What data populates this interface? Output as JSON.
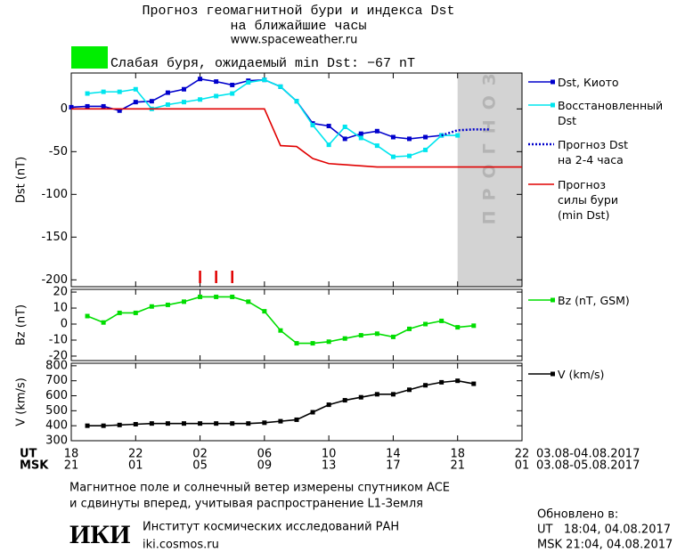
{
  "header": {
    "title": "Прогноз геомагнитной бури и индекса Dst",
    "title2": "на ближайшие часы",
    "url": "www.spaceweather.ru",
    "storm_text": "Слабая буря, ожидаемый min Dst: −67 nT",
    "storm_color": "#00ee00"
  },
  "chart_data": [
    {
      "type": "line",
      "ylabel": "Dst (nT)",
      "xlim": [
        0,
        28
      ],
      "ylim": [
        -208,
        42
      ],
      "yticks": [
        0,
        -50,
        -100,
        -150,
        -200
      ],
      "forecast_zone": {
        "x": [
          24,
          28
        ],
        "label": "ПРОГНОЗ",
        "color": "#d3d3d3"
      },
      "storm_markers": {
        "color": "#e00000",
        "x": [
          8,
          9,
          10
        ]
      },
      "series": [
        {
          "name": "Dst, Киото",
          "color": "#0000cc",
          "marker": "square",
          "dash": false,
          "x": [
            0,
            1,
            2,
            3,
            4,
            5,
            6,
            7,
            8,
            9,
            10,
            11,
            12,
            13,
            14,
            15,
            16,
            17,
            18,
            19,
            20,
            21,
            22,
            23
          ],
          "values": [
            2,
            3,
            3,
            -2,
            8,
            9,
            19,
            23,
            35,
            32,
            28,
            33,
            34,
            26,
            9,
            -17,
            -20,
            -35,
            -29,
            -26,
            -33,
            -35,
            -33,
            -31
          ]
        },
        {
          "name": "Восстановленный\nDst",
          "color": "#00e5ee",
          "marker": "square",
          "dash": false,
          "x": [
            1,
            2,
            3,
            4,
            5,
            6,
            7,
            8,
            9,
            10,
            11,
            12,
            13,
            14,
            15,
            16,
            17,
            18,
            19,
            20,
            21,
            22,
            23,
            24
          ],
          "values": [
            18,
            20,
            20,
            23,
            0,
            5,
            8,
            11,
            15,
            18,
            31,
            34,
            26,
            9,
            -19,
            -42,
            -21,
            -34,
            -43,
            -56,
            -55,
            -48,
            -31,
            -31
          ]
        },
        {
          "name": "Прогноз Dst\nна 2-4 часа",
          "color": "#0000cc",
          "marker": "none",
          "dash": true,
          "x": [
            23,
            24,
            25,
            26
          ],
          "values": [
            -31,
            -25,
            -24,
            -24
          ]
        },
        {
          "name": "Прогноз\nсилы бури\n(min Dst)",
          "color": "#e00000",
          "marker": "none",
          "dash": false,
          "x": [
            0,
            12,
            13,
            14,
            15,
            15.5,
            16,
            19,
            28
          ],
          "values": [
            0,
            0,
            -43,
            -44,
            -58,
            -61,
            -64,
            -68,
            -68
          ]
        }
      ]
    },
    {
      "type": "line",
      "ylabel": "Bz (nT)",
      "xlim": [
        0,
        28
      ],
      "ylim": [
        -22.8,
        21.7
      ],
      "yticks": [
        20,
        10,
        0,
        -10,
        -20
      ],
      "series": [
        {
          "name": "Bz (nT, GSM)",
          "color": "#00dd00",
          "marker": "square",
          "dash": false,
          "x": [
            1,
            2,
            3,
            4,
            5,
            6,
            7,
            8,
            9,
            10,
            11,
            12,
            13,
            14,
            15,
            16,
            17,
            18,
            19,
            20,
            21,
            22,
            23,
            24,
            25
          ],
          "values": [
            5,
            1,
            7,
            7,
            11,
            12,
            14,
            17,
            17,
            17,
            14,
            8,
            -4,
            -12,
            -12,
            -11,
            -9,
            -7,
            -6,
            -8,
            -3,
            0,
            2,
            -2,
            -1
          ]
        }
      ]
    },
    {
      "type": "line",
      "ylabel": "V (km/s)",
      "xlim": [
        0,
        28
      ],
      "ylim": [
        300,
        817
      ],
      "yticks": [
        800,
        700,
        600,
        500,
        400,
        300
      ],
      "xticks": [
        {
          "value": 0,
          "label": "18"
        },
        {
          "value": 4,
          "label": "22"
        },
        {
          "value": 8,
          "label": "02"
        },
        {
          "value": 12,
          "label": "06"
        },
        {
          "value": 16,
          "label": "10"
        },
        {
          "value": 20,
          "label": "14"
        },
        {
          "value": 24,
          "label": "18"
        },
        {
          "value": 28,
          "label": "22"
        }
      ],
      "msk_labels": [
        "21",
        "01",
        "05",
        "09",
        "13",
        "17",
        "21",
        "01"
      ],
      "ut_name": "UT",
      "msk_name": "MSK",
      "ut_dates": "03.08-04.08.2017",
      "msk_dates": "03.08-05.08.2017",
      "series": [
        {
          "name": "V (km/s)",
          "color": "#000000",
          "marker": "square",
          "dash": false,
          "x": [
            1,
            2,
            3,
            4,
            5,
            6,
            7,
            8,
            9,
            10,
            11,
            12,
            13,
            14,
            15,
            16,
            17,
            18,
            19,
            20,
            21,
            22,
            23,
            24,
            25
          ],
          "values": [
            400,
            400,
            405,
            410,
            415,
            415,
            415,
            415,
            415,
            415,
            415,
            420,
            430,
            440,
            490,
            540,
            570,
            590,
            610,
            610,
            640,
            670,
            690,
            700,
            680
          ]
        }
      ]
    }
  ],
  "footer": {
    "note1": "Магнитное поле и солнечный ветер измерены спутником ACE",
    "note2": "и сдвинуты вперед, учитывая распространение L1-Земля",
    "logo": "ИКИ",
    "institute": "Институт космических исследований РАН",
    "site": "iki.cosmos.ru",
    "updated": "Обновлено в:",
    "updated_ut": "UT   18:04, 04.08.2017",
    "updated_msk": "MSK 21:04, 04.08.2017"
  }
}
